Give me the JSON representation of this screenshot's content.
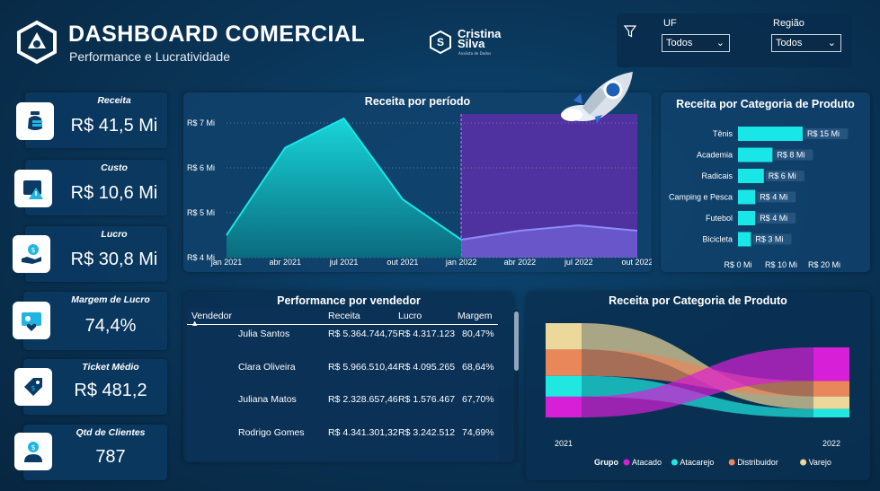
{
  "header": {
    "title": "DASHBOARD COMERCIAL",
    "subtitle": "Performance e Lucratividade",
    "brand_name_line1": "Cristina",
    "brand_name_line2": "Silva",
    "brand_tagline": "Analista de Dados"
  },
  "filters": {
    "uf_label": "UF",
    "uf_value": "Todos",
    "regiao_label": "Região",
    "regiao_value": "Todos"
  },
  "kpis": [
    {
      "label": "Receita",
      "value": "R$ 41,5 Mi",
      "icon": "money-bag-icon"
    },
    {
      "label": "Custo",
      "value": "R$ 10,6 Mi",
      "icon": "cost-alert-icon"
    },
    {
      "label": "Lucro",
      "value": "R$ 30,8 Mi",
      "icon": "profit-hand-icon"
    },
    {
      "label": "Margem de Lucro",
      "value": "74,4%",
      "icon": "margin-heart-icon"
    },
    {
      "label": "Ticket Médio",
      "value": "R$ 481,2",
      "icon": "price-tag-icon"
    },
    {
      "label": "Qtd de Clientes",
      "value": "787",
      "icon": "client-user-icon"
    }
  ],
  "period_chart": {
    "title": "Receita por período"
  },
  "category_bar": {
    "title": "Receita por Categoria de Produto"
  },
  "sellers": {
    "title": "Performance por vendedor",
    "columns": [
      "Vendedor",
      "Receita",
      "Lucro",
      "Margem"
    ],
    "rows": [
      {
        "name": "Julia Santos",
        "receita": "R$ 5.364.744,75",
        "lucro": "R$ 4.317.123",
        "margem": "80,47%"
      },
      {
        "name": "Clara Oliveira",
        "receita": "R$ 5.966.510,44",
        "lucro": "R$ 4.095.265",
        "margem": "68,64%"
      },
      {
        "name": "Juliana Matos",
        "receita": "R$ 2.328.657,46",
        "lucro": "R$ 1.576.467",
        "margem": "67,70%"
      },
      {
        "name": "Rodrigo Gomes",
        "receita": "R$ 4.341.301,32",
        "lucro": "R$ 3.242.512",
        "margem": "74,69%"
      }
    ]
  },
  "sankey": {
    "title": "Receita por Categoria de Produto",
    "left_label": "2021",
    "right_label": "2022",
    "legend_title": "Grupo"
  },
  "colors": {
    "teal": "#19e6e6",
    "purple_band": "#5a2fa8",
    "atacado": "#d81fd8",
    "atacarejo": "#20e8e0",
    "distribuidor": "#e9875a",
    "varejo": "#ecd89a"
  },
  "chart_data": [
    {
      "type": "area",
      "title": "Receita por período",
      "x": [
        "jan 2021",
        "abr 2021",
        "jul 2021",
        "out 2021",
        "jan 2022",
        "abr 2022",
        "jul 2022",
        "out 2022"
      ],
      "series": [
        {
          "values": [
            4.5,
            6.45,
            7.1,
            5.3,
            4.4,
            null,
            null,
            null
          ]
        },
        {
          "values": [
            null,
            null,
            null,
            null,
            4.4,
            4.6,
            4.72,
            4.6
          ]
        }
      ],
      "y_ticks": [
        "R$ 4 Mi",
        "R$ 5 Mi",
        "R$ 6 Mi",
        "R$ 7 Mi"
      ],
      "ylim": [
        4,
        7.2
      ],
      "grid": true
    },
    {
      "type": "bar",
      "orientation": "horizontal",
      "title": "Receita por Categoria de Produto",
      "categories": [
        "Tênis",
        "Academia",
        "Radicais",
        "Camping e Pesca",
        "Futebol",
        "Bicicleta"
      ],
      "values": [
        15,
        8,
        6,
        4,
        4,
        3
      ],
      "data_labels": [
        "R$ 15 Mi",
        "R$ 8 Mi",
        "R$ 6 Mi",
        "R$ 4 Mi",
        "R$ 4 Mi",
        "R$ 3 Mi"
      ],
      "x_ticks": [
        "R$ 0 Mi",
        "R$ 10 Mi",
        "R$ 20 Mi"
      ],
      "xlim": [
        0,
        20
      ]
    },
    {
      "type": "sankey",
      "title": "Receita por Categoria de Produto",
      "left": "2021",
      "right": "2022",
      "legend": [
        "Atacado",
        "Atacarejo",
        "Distribuidor",
        "Varejo"
      ],
      "flows": [
        {
          "group": "Varejo",
          "left_share": 0.28,
          "right_share": 0.18
        },
        {
          "group": "Distribuidor",
          "left_share": 0.28,
          "right_share": 0.22
        },
        {
          "group": "Atacarejo",
          "left_share": 0.22,
          "right_share": 0.12
        },
        {
          "group": "Atacado",
          "left_share": 0.22,
          "right_share": 0.48
        }
      ]
    }
  ]
}
